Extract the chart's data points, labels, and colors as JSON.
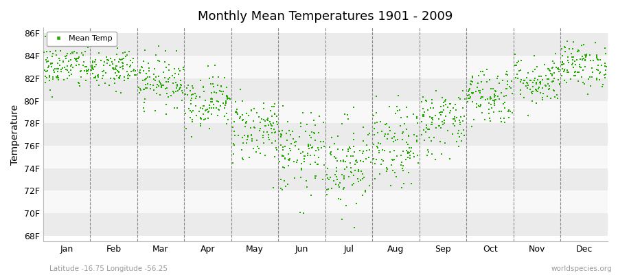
{
  "title": "Monthly Mean Temperatures 1901 - 2009",
  "ylabel": "Temperature",
  "xlabel_labels": [
    "Jan",
    "Feb",
    "Mar",
    "Apr",
    "May",
    "Jun",
    "Jul",
    "Aug",
    "Sep",
    "Oct",
    "Nov",
    "Dec"
  ],
  "legend_label": "Mean Temp",
  "dot_color": "#22AA00",
  "background_color": "#ffffff",
  "band_colors": [
    "#ebebeb",
    "#f8f8f8"
  ],
  "yticks": [
    68,
    70,
    72,
    74,
    76,
    78,
    80,
    82,
    84,
    86
  ],
  "ylim": [
    67.5,
    86.5
  ],
  "footnote_left": "Latitude -16.75 Longitude -56.25",
  "footnote_right": "worldspecies.org",
  "mean_temps_by_month": [
    83.0,
    82.8,
    81.8,
    80.0,
    77.5,
    75.2,
    74.5,
    75.8,
    78.2,
    80.5,
    81.8,
    83.2
  ],
  "std_by_month": [
    1.0,
    1.0,
    1.1,
    1.2,
    1.5,
    1.8,
    2.0,
    1.8,
    1.5,
    1.3,
    1.1,
    1.0
  ],
  "num_years": 109,
  "seed": 42
}
